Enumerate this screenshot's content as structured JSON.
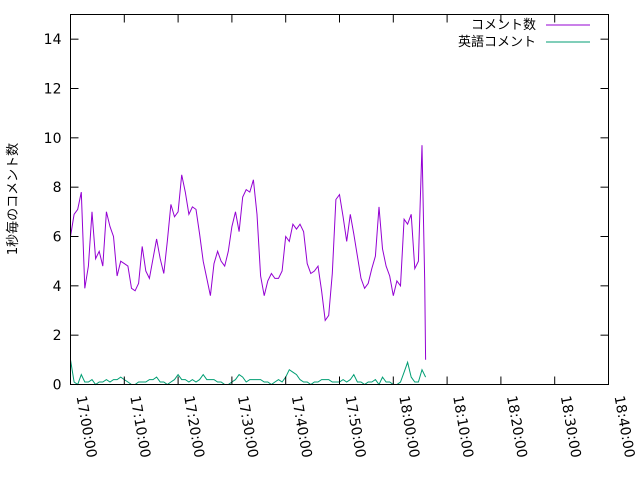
{
  "chart_data": {
    "type": "line",
    "ylabel": "1秒毎のコメント数",
    "xlabel": "",
    "ylim": [
      0,
      15
    ],
    "xlim": [
      "17:00:00",
      "18:40:00"
    ],
    "yticks": [
      0,
      2,
      4,
      6,
      8,
      10,
      12,
      14
    ],
    "xticks": [
      "17:00:00",
      "17:10:00",
      "17:20:00",
      "17:30:00",
      "17:40:00",
      "17:50:00",
      "18:00:00",
      "18:10:00",
      "18:20:00",
      "18:30:00",
      "18:40:00"
    ],
    "grid": false,
    "legend_position": "top-right",
    "series": [
      {
        "name": "コメント数",
        "color": "#9400d3",
        "points": [
          [
            "17:00:00",
            6.0
          ],
          [
            "17:00:40",
            6.9
          ],
          [
            "17:01:20",
            7.1
          ],
          [
            "17:02:00",
            7.8
          ],
          [
            "17:02:40",
            3.9
          ],
          [
            "17:03:20",
            4.8
          ],
          [
            "17:04:00",
            7.0
          ],
          [
            "17:04:40",
            5.1
          ],
          [
            "17:05:20",
            5.4
          ],
          [
            "17:06:00",
            4.8
          ],
          [
            "17:06:40",
            7.0
          ],
          [
            "17:07:20",
            6.4
          ],
          [
            "17:08:00",
            6.0
          ],
          [
            "17:08:40",
            4.4
          ],
          [
            "17:09:20",
            5.0
          ],
          [
            "17:10:00",
            4.9
          ],
          [
            "17:10:40",
            4.8
          ],
          [
            "17:11:20",
            3.9
          ],
          [
            "17:12:00",
            3.8
          ],
          [
            "17:12:40",
            4.1
          ],
          [
            "17:13:20",
            5.6
          ],
          [
            "17:14:00",
            4.6
          ],
          [
            "17:14:40",
            4.3
          ],
          [
            "17:15:20",
            5.1
          ],
          [
            "17:16:00",
            5.9
          ],
          [
            "17:16:40",
            5.1
          ],
          [
            "17:17:20",
            4.5
          ],
          [
            "17:18:00",
            5.8
          ],
          [
            "17:18:40",
            7.3
          ],
          [
            "17:19:20",
            6.8
          ],
          [
            "17:20:00",
            7.0
          ],
          [
            "17:20:40",
            8.5
          ],
          [
            "17:21:20",
            7.8
          ],
          [
            "17:22:00",
            6.9
          ],
          [
            "17:22:40",
            7.2
          ],
          [
            "17:23:20",
            7.1
          ],
          [
            "17:24:00",
            6.1
          ],
          [
            "17:24:40",
            5.0
          ],
          [
            "17:25:20",
            4.3
          ],
          [
            "17:26:00",
            3.6
          ],
          [
            "17:26:40",
            4.9
          ],
          [
            "17:27:20",
            5.4
          ],
          [
            "17:28:00",
            5.0
          ],
          [
            "17:28:40",
            4.8
          ],
          [
            "17:29:20",
            5.4
          ],
          [
            "17:30:00",
            6.4
          ],
          [
            "17:30:40",
            7.0
          ],
          [
            "17:31:20",
            6.2
          ],
          [
            "17:32:00",
            7.6
          ],
          [
            "17:32:40",
            7.9
          ],
          [
            "17:33:20",
            7.8
          ],
          [
            "17:34:00",
            8.3
          ],
          [
            "17:34:40",
            6.9
          ],
          [
            "17:35:20",
            4.4
          ],
          [
            "17:36:00",
            3.6
          ],
          [
            "17:36:40",
            4.2
          ],
          [
            "17:37:20",
            4.5
          ],
          [
            "17:38:00",
            4.3
          ],
          [
            "17:38:40",
            4.3
          ],
          [
            "17:39:20",
            4.6
          ],
          [
            "17:40:00",
            6.0
          ],
          [
            "17:40:40",
            5.8
          ],
          [
            "17:41:20",
            6.5
          ],
          [
            "17:42:00",
            6.3
          ],
          [
            "17:42:40",
            6.5
          ],
          [
            "17:43:20",
            6.2
          ],
          [
            "17:44:00",
            4.9
          ],
          [
            "17:44:40",
            4.5
          ],
          [
            "17:45:20",
            4.6
          ],
          [
            "17:46:00",
            4.8
          ],
          [
            "17:46:40",
            3.8
          ],
          [
            "17:47:20",
            2.6
          ],
          [
            "17:48:00",
            2.8
          ],
          [
            "17:48:40",
            4.5
          ],
          [
            "17:49:20",
            7.5
          ],
          [
            "17:50:00",
            7.7
          ],
          [
            "17:50:40",
            6.8
          ],
          [
            "17:51:20",
            5.8
          ],
          [
            "17:52:00",
            6.9
          ],
          [
            "17:52:40",
            6.1
          ],
          [
            "17:53:20",
            5.2
          ],
          [
            "17:54:00",
            4.3
          ],
          [
            "17:54:40",
            3.9
          ],
          [
            "17:55:20",
            4.1
          ],
          [
            "17:56:00",
            4.7
          ],
          [
            "17:56:40",
            5.2
          ],
          [
            "17:57:20",
            7.2
          ],
          [
            "17:58:00",
            5.5
          ],
          [
            "17:58:40",
            4.8
          ],
          [
            "17:59:20",
            4.4
          ],
          [
            "18:00:00",
            3.6
          ],
          [
            "18:00:40",
            4.2
          ],
          [
            "18:01:20",
            4.0
          ],
          [
            "18:02:00",
            6.7
          ],
          [
            "18:02:40",
            6.5
          ],
          [
            "18:03:20",
            6.9
          ],
          [
            "18:04:00",
            4.7
          ],
          [
            "18:04:40",
            5.0
          ],
          [
            "18:05:20",
            9.7
          ],
          [
            "18:05:50",
            4.2
          ],
          [
            "18:06:00",
            1.0
          ]
        ]
      },
      {
        "name": "英語コメント",
        "color": "#009e73",
        "points": [
          [
            "17:00:00",
            1.0
          ],
          [
            "17:00:40",
            0.1
          ],
          [
            "17:01:20",
            0.0
          ],
          [
            "17:02:00",
            0.4
          ],
          [
            "17:02:40",
            0.1
          ],
          [
            "17:03:20",
            0.1
          ],
          [
            "17:04:00",
            0.2
          ],
          [
            "17:04:40",
            0.0
          ],
          [
            "17:05:20",
            0.1
          ],
          [
            "17:06:00",
            0.1
          ],
          [
            "17:06:40",
            0.2
          ],
          [
            "17:07:20",
            0.1
          ],
          [
            "17:08:00",
            0.2
          ],
          [
            "17:08:40",
            0.2
          ],
          [
            "17:09:20",
            0.3
          ],
          [
            "17:10:00",
            0.2
          ],
          [
            "17:10:40",
            0.1
          ],
          [
            "17:11:20",
            0.0
          ],
          [
            "17:12:00",
            0.0
          ],
          [
            "17:12:40",
            0.1
          ],
          [
            "17:13:20",
            0.1
          ],
          [
            "17:14:00",
            0.1
          ],
          [
            "17:14:40",
            0.2
          ],
          [
            "17:15:20",
            0.2
          ],
          [
            "17:16:00",
            0.3
          ],
          [
            "17:16:40",
            0.1
          ],
          [
            "17:17:20",
            0.1
          ],
          [
            "17:18:00",
            0.0
          ],
          [
            "17:18:40",
            0.1
          ],
          [
            "17:19:20",
            0.2
          ],
          [
            "17:20:00",
            0.4
          ],
          [
            "17:20:40",
            0.2
          ],
          [
            "17:21:20",
            0.2
          ],
          [
            "17:22:00",
            0.1
          ],
          [
            "17:22:40",
            0.2
          ],
          [
            "17:23:20",
            0.1
          ],
          [
            "17:24:00",
            0.2
          ],
          [
            "17:24:40",
            0.4
          ],
          [
            "17:25:20",
            0.2
          ],
          [
            "17:26:00",
            0.2
          ],
          [
            "17:26:40",
            0.2
          ],
          [
            "17:27:20",
            0.1
          ],
          [
            "17:28:00",
            0.1
          ],
          [
            "17:28:40",
            0.0
          ],
          [
            "17:29:20",
            0.0
          ],
          [
            "17:30:00",
            0.1
          ],
          [
            "17:30:40",
            0.2
          ],
          [
            "17:31:20",
            0.4
          ],
          [
            "17:32:00",
            0.3
          ],
          [
            "17:32:40",
            0.1
          ],
          [
            "17:33:20",
            0.2
          ],
          [
            "17:34:00",
            0.2
          ],
          [
            "17:34:40",
            0.2
          ],
          [
            "17:35:20",
            0.2
          ],
          [
            "17:36:00",
            0.1
          ],
          [
            "17:36:40",
            0.1
          ],
          [
            "17:37:20",
            0.0
          ],
          [
            "17:38:00",
            0.1
          ],
          [
            "17:38:40",
            0.2
          ],
          [
            "17:39:20",
            0.1
          ],
          [
            "17:40:00",
            0.3
          ],
          [
            "17:40:40",
            0.6
          ],
          [
            "17:41:20",
            0.5
          ],
          [
            "17:42:00",
            0.4
          ],
          [
            "17:42:40",
            0.2
          ],
          [
            "17:43:20",
            0.1
          ],
          [
            "17:44:00",
            0.1
          ],
          [
            "17:44:40",
            0.0
          ],
          [
            "17:45:20",
            0.1
          ],
          [
            "17:46:00",
            0.1
          ],
          [
            "17:46:40",
            0.2
          ],
          [
            "17:47:20",
            0.2
          ],
          [
            "17:48:00",
            0.2
          ],
          [
            "17:48:40",
            0.1
          ],
          [
            "17:49:20",
            0.1
          ],
          [
            "17:50:00",
            0.1
          ],
          [
            "17:50:40",
            0.2
          ],
          [
            "17:51:20",
            0.1
          ],
          [
            "17:52:00",
            0.2
          ],
          [
            "17:52:40",
            0.4
          ],
          [
            "17:53:20",
            0.1
          ],
          [
            "17:54:00",
            0.1
          ],
          [
            "17:54:40",
            0.0
          ],
          [
            "17:55:20",
            0.1
          ],
          [
            "17:56:00",
            0.1
          ],
          [
            "17:56:40",
            0.2
          ],
          [
            "17:57:20",
            0.0
          ],
          [
            "17:58:00",
            0.3
          ],
          [
            "17:58:40",
            0.1
          ],
          [
            "17:59:20",
            0.1
          ],
          [
            "18:00:00",
            0.0
          ],
          [
            "18:00:40",
            0.0
          ],
          [
            "18:01:20",
            0.1
          ],
          [
            "18:02:00",
            0.5
          ],
          [
            "18:02:40",
            0.9
          ],
          [
            "18:03:20",
            0.3
          ],
          [
            "18:04:00",
            0.1
          ],
          [
            "18:04:40",
            0.1
          ],
          [
            "18:05:20",
            0.6
          ],
          [
            "18:06:00",
            0.3
          ]
        ]
      }
    ]
  }
}
